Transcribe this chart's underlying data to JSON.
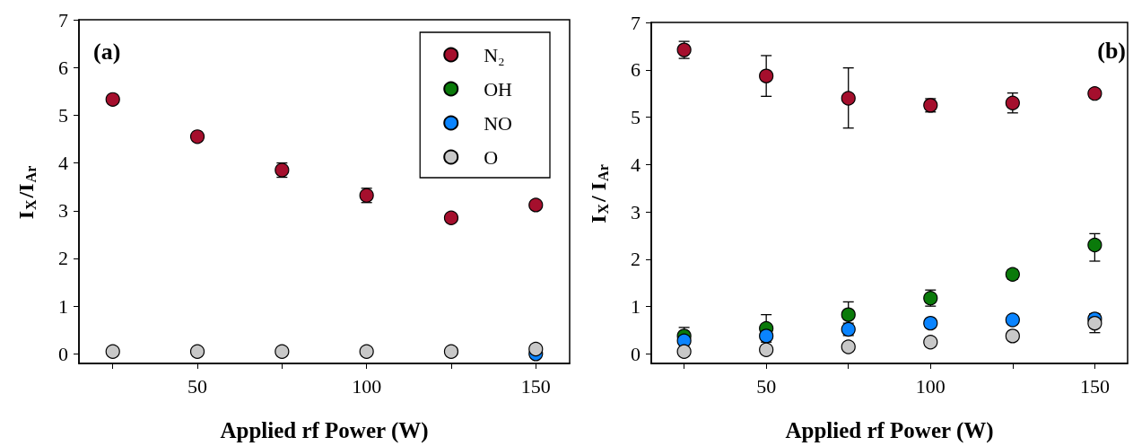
{
  "chart_data": [
    {
      "type": "scatter",
      "xlabel": "Applied rf Power (W)",
      "ylabel": "I$_{X}$/I$_{Ar}$",
      "annotations": [
        "(a)"
      ],
      "x": [
        25,
        50,
        75,
        100,
        125,
        150
      ],
      "xlim": [
        15,
        160
      ],
      "xticks": [
        {
          "value": 25,
          "label": null
        },
        50,
        {
          "value": 75,
          "label": null
        },
        100,
        {
          "value": 125,
          "label": null
        },
        150
      ],
      "ylim": [
        -0.2,
        7
      ],
      "yticks": [
        0,
        1,
        2,
        3,
        4,
        5,
        6,
        7
      ],
      "marker": "circle",
      "grid": false,
      "legend": "top right",
      "series": [
        {
          "name": "N₂",
          "color": "#a50f2d",
          "values": [
            5.33,
            4.55,
            3.85,
            3.32,
            2.85,
            3.12
          ],
          "errors": [
            null,
            null,
            0.15,
            0.15,
            null,
            null
          ]
        },
        {
          "name": "OH",
          "color": "#0a7a0a",
          "values": [
            null,
            null,
            null,
            null,
            null,
            null
          ]
        },
        {
          "name": "NO",
          "color": "#0a84ff",
          "values": [
            null,
            null,
            null,
            null,
            null,
            0.0
          ]
        },
        {
          "name": "O",
          "color": "#c8c8c8",
          "values": [
            0.05,
            0.05,
            0.05,
            0.05,
            0.05,
            0.1
          ]
        }
      ]
    },
    {
      "type": "scatter",
      "xlabel": "Applied rf Power (W)",
      "ylabel": "I$_{X}$/ I$_{Ar}$",
      "annotations": [
        "(b)"
      ],
      "x": [
        25,
        50,
        75,
        100,
        125,
        150
      ],
      "xlim": [
        15,
        160
      ],
      "xticks": [
        {
          "value": 25,
          "label": null
        },
        50,
        {
          "value": 75,
          "label": null
        },
        100,
        {
          "value": 125,
          "label": null
        },
        150
      ],
      "ylim": [
        -0.2,
        7
      ],
      "yticks": [
        0,
        1,
        2,
        3,
        4,
        5,
        6,
        7
      ],
      "marker": "circle",
      "grid": false,
      "series": [
        {
          "color": "#a50f2d",
          "values": [
            6.42,
            5.87,
            5.4,
            5.25,
            5.3,
            5.5
          ],
          "errors": [
            0.18,
            0.43,
            [
              4.77,
              6.04
            ],
            0.14,
            0.21,
            null
          ]
        },
        {
          "color": "#0a7a0a",
          "values": [
            0.38,
            0.54,
            0.83,
            1.18,
            1.68,
            2.3
          ],
          "errors": [
            0.18,
            0.29,
            0.27,
            0.17,
            0.1,
            [
              1.96,
              2.54
            ]
          ]
        },
        {
          "color": "#0a84ff",
          "values": [
            0.28,
            0.38,
            0.52,
            0.65,
            0.72,
            0.74
          ],
          "errors": [
            null,
            null,
            0.13,
            null,
            null,
            0.1
          ]
        },
        {
          "color": "#c8c8c8",
          "values": [
            0.05,
            0.09,
            0.15,
            0.25,
            0.38,
            0.65
          ],
          "errors": [
            null,
            null,
            null,
            null,
            null,
            0.2
          ]
        }
      ]
    }
  ]
}
